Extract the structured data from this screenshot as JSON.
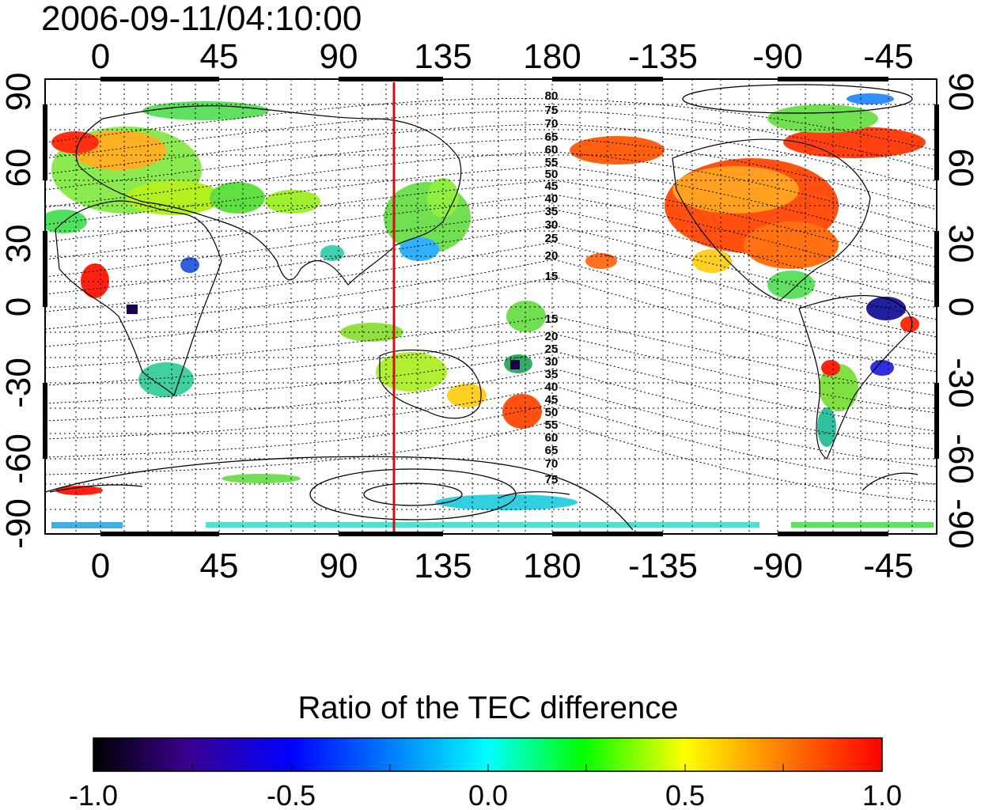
{
  "timestamp": "2006-09-11/04:10:00",
  "lon_ticks": [
    "0",
    "45",
    "90",
    "135",
    "180",
    "-135",
    "-90",
    "-45"
  ],
  "lat_ticks": [
    "90",
    "60",
    "30",
    "0",
    "-30",
    "-60",
    "-90"
  ],
  "contour_labels_north": [
    "80",
    "75",
    "70",
    "65",
    "60",
    "55",
    "50",
    "45",
    "40",
    "35",
    "30",
    "25",
    "20",
    "15"
  ],
  "contour_labels_south": [
    "15",
    "20",
    "25",
    "30",
    "35",
    "40",
    "45",
    "50",
    "55",
    "60",
    "65",
    "70",
    "75"
  ],
  "meridian_line": {
    "longitude": 120,
    "color": "#d01010"
  },
  "colorbar": {
    "title": "Ratio of the TEC difference",
    "ticks": [
      "-1.0",
      "-0.5",
      "0.0",
      "0.5",
      "1.0"
    ],
    "range": [
      -1.0,
      1.0
    ],
    "colors": [
      "#000000",
      "#3a0090",
      "#0000ff",
      "#00ffff",
      "#00ff00",
      "#ffff00",
      "#ff8000",
      "#ff0000"
    ]
  }
}
